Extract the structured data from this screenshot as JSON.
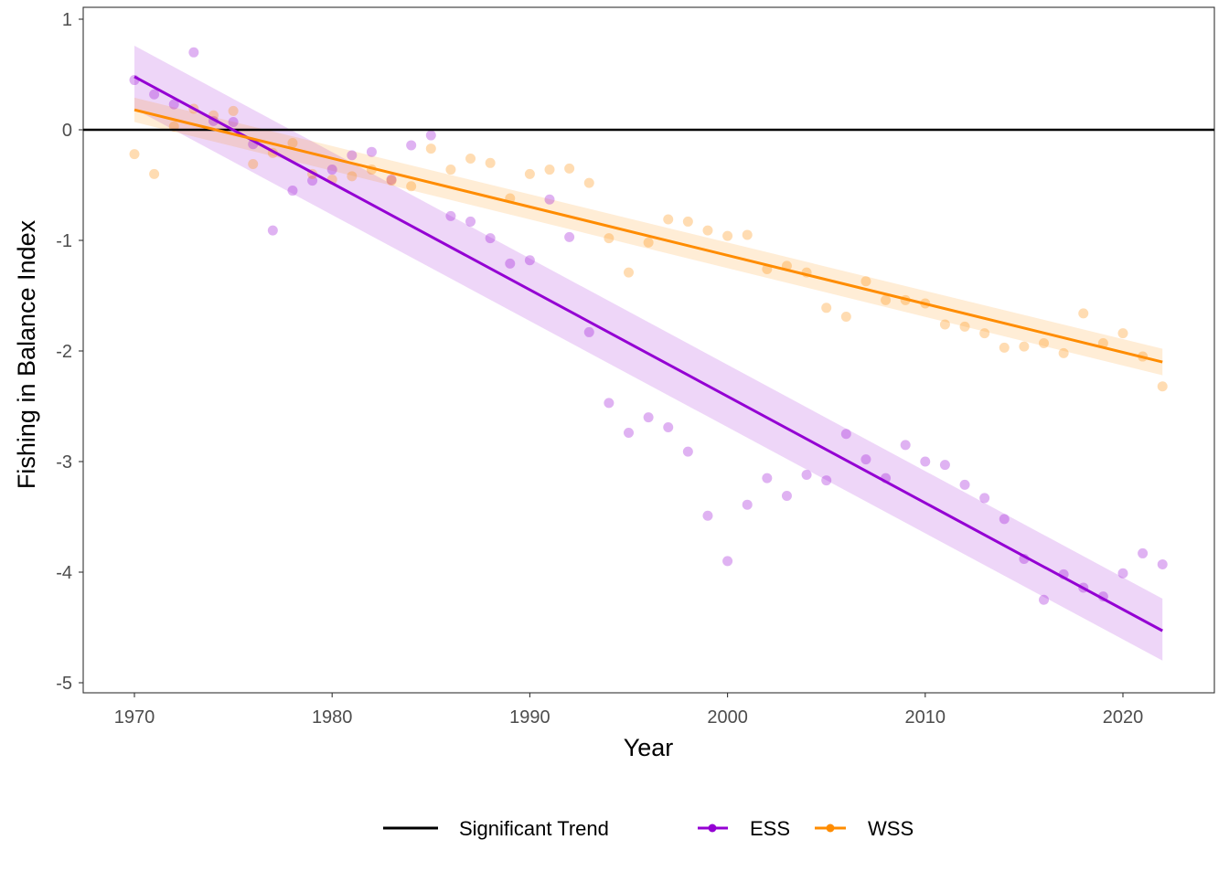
{
  "chart_data": {
    "type": "scatter",
    "title": "",
    "xlabel": "Year",
    "ylabel": "Fishing in Balance Index",
    "xlim": [
      1967.5,
      2024.5
    ],
    "ylim": [
      -5.1,
      1.1
    ],
    "x_ticks": [
      1970,
      1980,
      1990,
      2000,
      2010,
      2020
    ],
    "y_ticks": [
      1,
      0,
      -1,
      -2,
      -3,
      -4,
      -5
    ],
    "y_tick_labels": [
      "1",
      "0",
      "-1",
      "-2",
      "-3",
      "-4",
      "-5"
    ],
    "x_tick_labels": [
      "1970",
      "1980",
      "1990",
      "2000",
      "2010",
      "2020"
    ],
    "grid": false,
    "legend_position": "bottom",
    "reference_line": {
      "y": 0,
      "label": "Significant Trend",
      "color": "#000000"
    },
    "series": [
      {
        "name": "ESS",
        "color": "#9400D3",
        "x": [
          1970,
          1971,
          1972,
          1973,
          1974,
          1975,
          1976,
          1977,
          1978,
          1979,
          1980,
          1981,
          1982,
          1983,
          1984,
          1985,
          1986,
          1987,
          1988,
          1989,
          1990,
          1991,
          1992,
          1993,
          1994,
          1995,
          1996,
          1997,
          1998,
          1999,
          2000,
          2001,
          2002,
          2003,
          2004,
          2005,
          2006,
          2007,
          2008,
          2009,
          2010,
          2011,
          2012,
          2013,
          2014,
          2015,
          2016,
          2017,
          2018,
          2019,
          2020,
          2021,
          2022
        ],
        "y": [
          0.45,
          0.32,
          0.23,
          0.7,
          0.08,
          0.07,
          -0.13,
          -0.91,
          -0.55,
          -0.46,
          -0.36,
          -0.23,
          -0.2,
          -0.45,
          -0.14,
          -0.05,
          -0.78,
          -0.83,
          -0.98,
          -1.21,
          -1.18,
          -0.63,
          -0.97,
          -1.83,
          -2.47,
          -2.74,
          -2.6,
          -2.69,
          -2.91,
          -3.49,
          -3.9,
          -3.39,
          -3.15,
          -3.31,
          -3.12,
          -3.17,
          -2.75,
          -2.98,
          -3.15,
          -2.85,
          -3.0,
          -3.03,
          -3.21,
          -3.33,
          -3.52,
          -3.88,
          -4.25,
          -4.02,
          -4.14,
          -4.22,
          -4.01,
          -3.83,
          -3.93
        ],
        "trend": {
          "x": [
            1970,
            2022
          ],
          "y": [
            0.48,
            -4.53
          ],
          "ci_lower": [
            0.19,
            -4.8
          ],
          "ci_upper": [
            0.76,
            -4.24
          ]
        }
      },
      {
        "name": "WSS",
        "color": "#FF8C00",
        "x": [
          1970,
          1971,
          1972,
          1973,
          1974,
          1975,
          1976,
          1977,
          1978,
          1979,
          1980,
          1981,
          1982,
          1983,
          1984,
          1985,
          1986,
          1987,
          1988,
          1989,
          1990,
          1991,
          1992,
          1993,
          1994,
          1995,
          1996,
          1997,
          1998,
          1999,
          2000,
          2001,
          2002,
          2003,
          2004,
          2005,
          2006,
          2007,
          2008,
          2009,
          2010,
          2011,
          2012,
          2013,
          2014,
          2015,
          2016,
          2017,
          2018,
          2019,
          2020,
          2021,
          2022
        ],
        "y": [
          -0.22,
          -0.4,
          0.03,
          0.19,
          0.13,
          0.17,
          -0.31,
          -0.21,
          -0.12,
          -0.4,
          -0.45,
          -0.42,
          -0.36,
          -0.46,
          -0.51,
          -0.17,
          -0.36,
          -0.26,
          -0.3,
          -0.62,
          -0.4,
          -0.36,
          -0.35,
          -0.48,
          -0.98,
          -1.29,
          -1.02,
          -0.81,
          -0.83,
          -0.91,
          -0.96,
          -0.95,
          -1.26,
          -1.23,
          -1.29,
          -1.61,
          -1.69,
          -1.37,
          -1.54,
          -1.54,
          -1.57,
          -1.76,
          -1.78,
          -1.84,
          -1.97,
          -1.96,
          -1.93,
          -2.02,
          -1.66,
          -1.93,
          -1.84,
          -2.05,
          -2.32
        ],
        "trend": {
          "x": [
            1970,
            2022
          ],
          "y": [
            0.18,
            -2.1
          ],
          "ci_lower": [
            0.07,
            -2.22
          ],
          "ci_upper": [
            0.29,
            -1.98
          ]
        }
      }
    ]
  }
}
